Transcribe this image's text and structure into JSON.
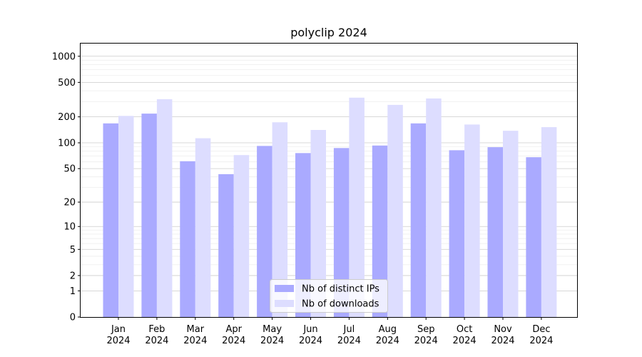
{
  "chart_data": {
    "type": "bar",
    "title": "polyclip 2024",
    "xlabel": "",
    "ylabel": "",
    "y_scale": "log(1+y)",
    "ylim": [
      0,
      1400
    ],
    "grid": "horizontal",
    "legend_position": "bottom-center",
    "categories": [
      [
        "Jan",
        "2024"
      ],
      [
        "Feb",
        "2024"
      ],
      [
        "Mar",
        "2024"
      ],
      [
        "Apr",
        "2024"
      ],
      [
        "May",
        "2024"
      ],
      [
        "Jun",
        "2024"
      ],
      [
        "Jul",
        "2024"
      ],
      [
        "Aug",
        "2024"
      ],
      [
        "Sep",
        "2024"
      ],
      [
        "Oct",
        "2024"
      ],
      [
        "Nov",
        "2024"
      ],
      [
        "Dec",
        "2024"
      ]
    ],
    "y_ticks": [
      0,
      1,
      2,
      5,
      10,
      20,
      50,
      100,
      200,
      500,
      1000
    ],
    "series": [
      {
        "name": "Nb of distinct IPs",
        "color": "#aaaaff",
        "values": [
          168,
          218,
          61,
          43,
          92,
          76,
          87,
          93,
          168,
          82,
          89,
          68
        ]
      },
      {
        "name": "Nb of downloads",
        "color": "#ddddff",
        "values": [
          205,
          320,
          113,
          72,
          173,
          141,
          333,
          275,
          326,
          163,
          138,
          152
        ]
      }
    ]
  }
}
